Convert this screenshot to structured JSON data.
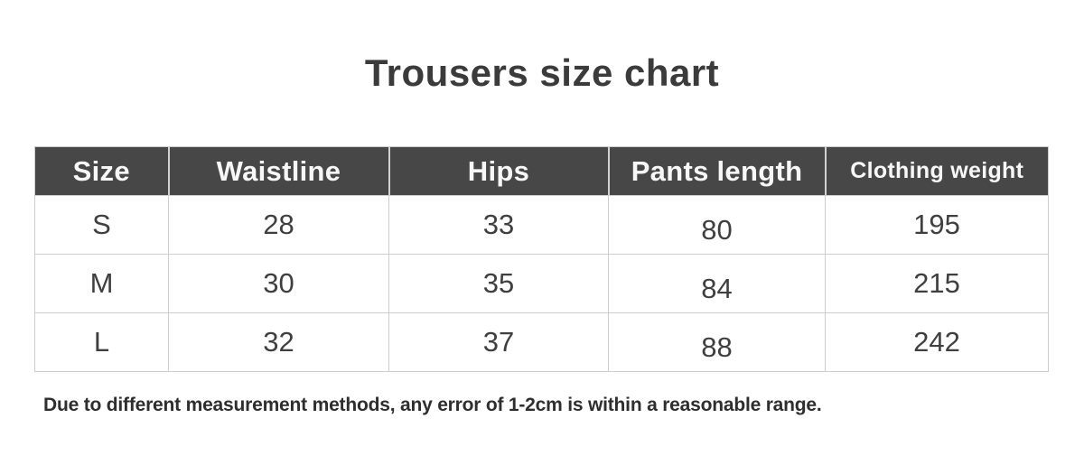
{
  "chart_data": {
    "type": "table",
    "title": "Trousers size chart",
    "columns": [
      "Size",
      "Waistline",
      "Hips",
      "Pants length",
      "Clothing weight"
    ],
    "rows": [
      [
        "S",
        "28",
        "33",
        "80",
        "195"
      ],
      [
        "M",
        "30",
        "35",
        "84",
        "215"
      ],
      [
        "L",
        "32",
        "37",
        "88",
        "242"
      ]
    ],
    "note": "Due to different measurement methods, any error of 1-2cm is within a reasonable range."
  },
  "colors": {
    "header_bg": "#474747",
    "header_text": "#f7f7f7",
    "body_text": "#3f3f3f",
    "border": "#cdcdcd",
    "title_text": "#3b3b3b"
  }
}
